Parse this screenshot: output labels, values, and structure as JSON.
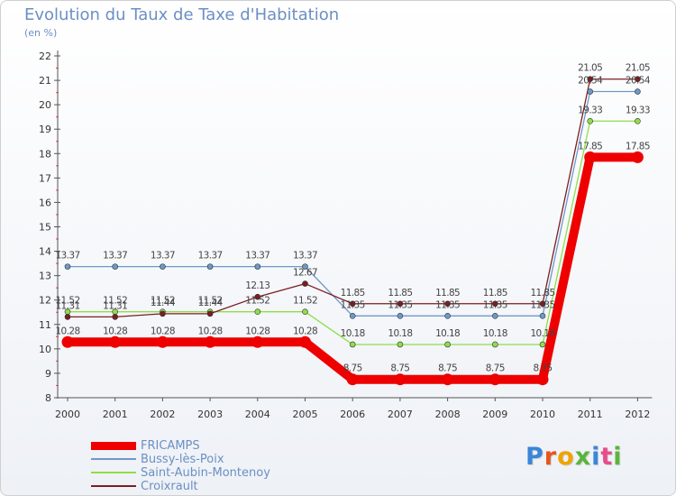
{
  "title": "Evolution du Taux de Taxe d'Habitation",
  "subtitle": "(en %)",
  "logo_text": "Proxiti",
  "chart_data": {
    "type": "line",
    "title": "Evolution du Taux de Taxe d'Habitation",
    "ylabel": "(en %)",
    "xlabel": "",
    "categories": [
      "2000",
      "2001",
      "2002",
      "2003",
      "2004",
      "2005",
      "2006",
      "2007",
      "2008",
      "2009",
      "2010",
      "2011",
      "2012"
    ],
    "ylim": [
      8,
      22
    ],
    "yticks": [
      8,
      9,
      10,
      11,
      12,
      13,
      14,
      15,
      16,
      17,
      18,
      19,
      20,
      21,
      22
    ],
    "grid": false,
    "legend_position": "bottom-left",
    "series": [
      {
        "name": "FRICAMPS",
        "color": "#ee0000",
        "values": [
          10.28,
          10.28,
          10.28,
          10.28,
          10.28,
          10.28,
          8.75,
          8.75,
          8.75,
          8.75,
          8.75,
          17.85,
          17.85
        ]
      },
      {
        "name": "Bussy-lès-Poix",
        "color": "#6f98c8",
        "values": [
          13.37,
          13.37,
          13.37,
          13.37,
          13.37,
          13.37,
          11.35,
          11.35,
          11.35,
          11.35,
          11.35,
          20.54,
          20.54
        ]
      },
      {
        "name": "Saint-Aubin-Montenoy",
        "color": "#8fde4a",
        "values": [
          11.52,
          11.52,
          11.52,
          11.52,
          11.52,
          11.52,
          10.18,
          10.18,
          10.18,
          10.18,
          10.18,
          19.33,
          19.33
        ]
      },
      {
        "name": "Croixrault",
        "color": "#7a1e22",
        "values": [
          11.31,
          11.31,
          11.44,
          11.44,
          12.13,
          12.67,
          11.85,
          11.85,
          11.85,
          11.85,
          11.85,
          21.05,
          21.05
        ]
      }
    ],
    "data_labels": [
      [
        "10.28",
        "10.28",
        "10.28",
        "10.28",
        "10.28",
        "10.28",
        "8.75",
        "8.75",
        "8.75",
        "8.75",
        "8.75",
        "17.85",
        "17.85"
      ],
      [
        "13.37",
        "13.37",
        "13.37",
        "13.37",
        "13.37",
        "13.37",
        "11.35",
        "11.35",
        "11.35",
        "11.35",
        "11.35",
        "20.54",
        "20.54"
      ],
      [
        "11.52",
        "11.52",
        "11.52",
        "11.52",
        "11.52",
        "11.52",
        "10.18",
        "10.18",
        "10.18",
        "10.18",
        "10.18",
        "19.33",
        "19.33"
      ],
      [
        "11.31",
        "11.31",
        "11.44",
        "11.44",
        "12.13",
        "12.67",
        "11.85",
        "11.85",
        "11.85",
        "11.85",
        "11.85",
        "21.05",
        "21.05"
      ]
    ]
  }
}
